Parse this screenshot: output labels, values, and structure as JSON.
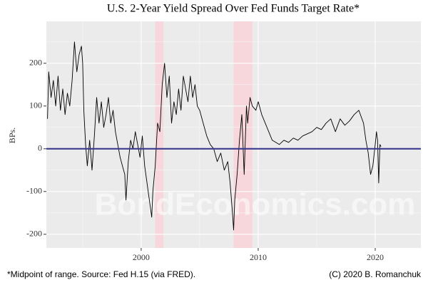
{
  "chart_data": {
    "type": "line",
    "title": "U.S. 2-Year Yield Spread Over Fed Funds Target Rate*",
    "ylabel": "BPs.",
    "caption_left": "*Midpoint of range. Source: Fed H.15 (via FRED).",
    "caption_right": "(C) 2020 B. Romanchuk",
    "watermark": "BondEconomics.com",
    "xlim": [
      1991.9,
      2023.9
    ],
    "xticks": [
      2000,
      2010,
      2020
    ],
    "ylim": [
      -232,
      298
    ],
    "yticks": [
      -200,
      -100,
      0,
      100,
      200
    ],
    "grid": true,
    "hline": 0,
    "hline_color": "#3b3b8f",
    "shaded_regions": [
      [
        2001.2,
        2001.9
      ],
      [
        2007.9,
        2009.5
      ]
    ],
    "shade_color": "#f7d6dc",
    "series": [
      {
        "color": "#000000",
        "x": [
          1992.0,
          1992.1,
          1992.3,
          1992.5,
          1992.7,
          1992.9,
          1993.1,
          1993.3,
          1993.5,
          1993.7,
          1993.9,
          1994.1,
          1994.3,
          1994.5,
          1994.7,
          1994.9,
          1995.0,
          1995.1,
          1995.25,
          1995.4,
          1995.6,
          1995.8,
          1996.0,
          1996.2,
          1996.4,
          1996.6,
          1996.8,
          1997.0,
          1997.2,
          1997.4,
          1997.6,
          1997.8,
          1998.0,
          1998.2,
          1998.4,
          1998.6,
          1998.7,
          1998.9,
          1999.1,
          1999.3,
          1999.5,
          1999.7,
          1999.9,
          2000.1,
          2000.3,
          2000.5,
          2000.7,
          2000.9,
          2001.0,
          2001.2,
          2001.4,
          2001.6,
          2001.8,
          2002.0,
          2002.2,
          2002.4,
          2002.6,
          2002.8,
          2003.0,
          2003.2,
          2003.4,
          2003.6,
          2003.8,
          2004.0,
          2004.2,
          2004.4,
          2004.6,
          2004.8,
          2005.0,
          2005.3,
          2005.6,
          2005.9,
          2006.2,
          2006.5,
          2006.8,
          2007.1,
          2007.4,
          2007.6,
          2007.8,
          2007.9,
          2008.0,
          2008.2,
          2008.4,
          2008.6,
          2008.8,
          2009.0,
          2009.1,
          2009.3,
          2009.5,
          2009.8,
          2010.0,
          2010.3,
          2010.6,
          2010.9,
          2011.2,
          2011.5,
          2011.8,
          2012.2,
          2012.6,
          2013.0,
          2013.4,
          2013.8,
          2014.2,
          2014.6,
          2015.0,
          2015.4,
          2015.8,
          2016.2,
          2016.6,
          2017.0,
          2017.4,
          2017.8,
          2018.2,
          2018.6,
          2019.0,
          2019.2,
          2019.4,
          2019.6,
          2019.8,
          2020.0,
          2020.1,
          2020.2,
          2020.3,
          2020.4,
          2020.5
        ],
        "values": [
          70,
          180,
          120,
          160,
          100,
          170,
          90,
          140,
          80,
          130,
          100,
          160,
          250,
          180,
          220,
          240,
          200,
          90,
          10,
          -40,
          20,
          -50,
          30,
          120,
          60,
          110,
          50,
          80,
          120,
          60,
          90,
          40,
          10,
          -20,
          -40,
          -60,
          -120,
          -30,
          20,
          0,
          40,
          10,
          -20,
          30,
          -40,
          -80,
          -120,
          -160,
          -100,
          -40,
          60,
          40,
          150,
          200,
          120,
          170,
          60,
          110,
          80,
          140,
          90,
          170,
          140,
          110,
          170,
          120,
          150,
          100,
          90,
          60,
          30,
          10,
          0,
          -30,
          -10,
          -50,
          -30,
          -80,
          -150,
          -190,
          -120,
          -60,
          20,
          80,
          -60,
          100,
          60,
          120,
          100,
          90,
          110,
          80,
          60,
          40,
          20,
          15,
          10,
          20,
          15,
          25,
          20,
          30,
          35,
          40,
          50,
          45,
          60,
          70,
          40,
          70,
          55,
          65,
          80,
          90,
          60,
          20,
          -10,
          -60,
          -40,
          10,
          40,
          20,
          -80,
          10,
          5
        ]
      }
    ]
  }
}
